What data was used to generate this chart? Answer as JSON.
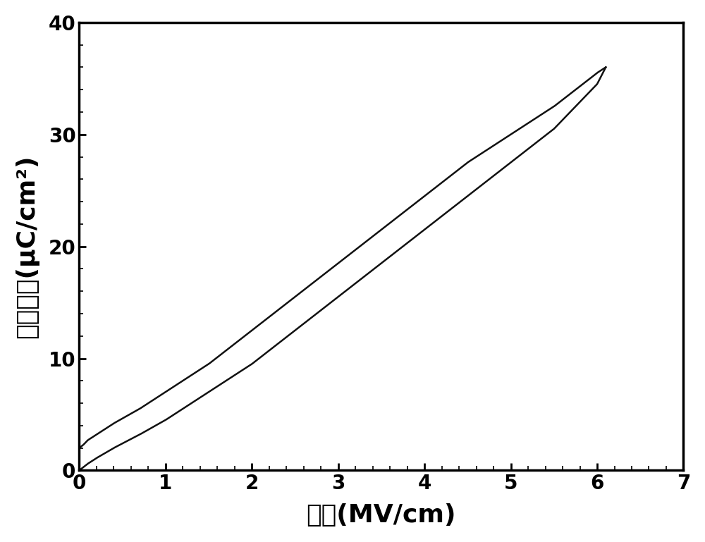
{
  "xlabel": "电场(MV/cm)",
  "ylabel": "极化强度(μC/cm²)",
  "xlim": [
    0,
    7
  ],
  "ylim": [
    0,
    40
  ],
  "xticks": [
    0,
    1,
    2,
    3,
    4,
    5,
    6,
    7
  ],
  "yticks": [
    0,
    10,
    20,
    30,
    40
  ],
  "line_color": "#111111",
  "linewidth": 1.8,
  "background_color": "#ffffff",
  "xlabel_fontsize": 26,
  "ylabel_fontsize": 26,
  "tick_fontsize": 20,
  "figsize": [
    10.0,
    7.69
  ],
  "dpi": 100,
  "upper_curve_x": [
    0.0,
    0.05,
    0.1,
    0.2,
    0.4,
    0.7,
    1.0,
    1.5,
    2.0,
    2.5,
    3.0,
    3.5,
    4.0,
    4.5,
    5.0,
    5.5,
    6.0,
    6.1
  ],
  "upper_curve_y": [
    2.0,
    2.3,
    2.7,
    3.2,
    4.2,
    5.5,
    7.0,
    9.5,
    12.5,
    15.5,
    18.5,
    21.5,
    24.5,
    27.5,
    30.0,
    32.5,
    35.5,
    36.0
  ],
  "lower_curve_x": [
    0.0,
    0.05,
    0.1,
    0.2,
    0.4,
    0.7,
    1.0,
    1.5,
    2.0,
    2.5,
    3.0,
    3.5,
    4.0,
    4.5,
    5.0,
    5.5,
    6.0,
    6.1
  ],
  "lower_curve_y": [
    0.0,
    0.3,
    0.6,
    1.1,
    2.0,
    3.2,
    4.5,
    7.0,
    9.5,
    12.5,
    15.5,
    18.5,
    21.5,
    24.5,
    27.5,
    30.5,
    34.5,
    36.0
  ]
}
